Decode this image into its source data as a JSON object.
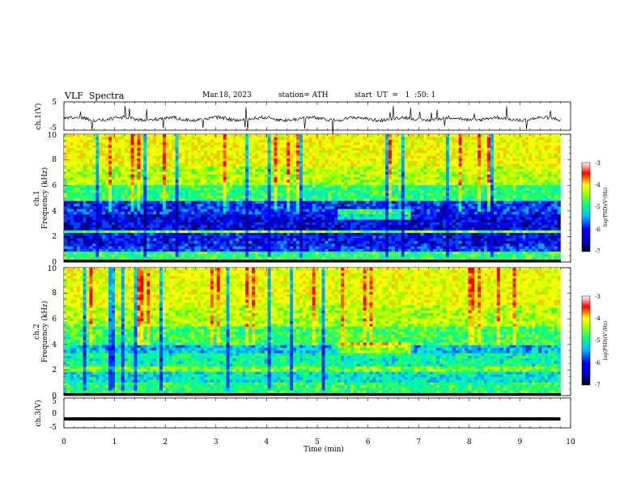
{
  "header": {
    "title": "VLF  Spectra",
    "date": "Mar.18, 2023",
    "station": "station= ATH",
    "start_ut": "start  UT  =   1  :50: 1"
  },
  "colors": {
    "scale": [
      "#000000",
      "#0000ff",
      "#00c0ff",
      "#00ff80",
      "#ffff00",
      "#ff0000",
      "#ffffff"
    ],
    "trace": "#000000"
  },
  "chart_data": [
    {
      "type": "line",
      "name": "ch1-waveform",
      "ylabel": "ch.1(V)",
      "ylim": [
        -5,
        5
      ],
      "yticks": [
        "5",
        "-5"
      ],
      "xlim": [
        0,
        10
      ],
      "note_values": "noisy trace around -1 V with sporadic spikes"
    },
    {
      "type": "heatmap",
      "name": "ch1-spectrogram",
      "ylabel_ch": "ch.1",
      "ylabel": "Frequency  (kHz)",
      "ylim": [
        0,
        10
      ],
      "yticks": [
        "0",
        "2",
        "4",
        "6",
        "8",
        "10"
      ],
      "xlim": [
        0,
        10
      ],
      "data_end_min": 9.8,
      "colorbar": {
        "label": "log(PSD)(V²/Hz)",
        "range": [
          -7,
          -3
        ],
        "ticks": [
          "-3",
          "-4",
          "-5",
          "-6",
          "-7"
        ]
      }
    },
    {
      "type": "heatmap",
      "name": "ch2-spectrogram",
      "ylabel_ch": "ch.2",
      "ylabel": "Frequency  (kHz)",
      "ylim": [
        0,
        10
      ],
      "yticks": [
        "0",
        "2",
        "4",
        "6",
        "8",
        "10"
      ],
      "xlim": [
        0,
        10
      ],
      "data_end_min": 9.8,
      "colorbar": {
        "label": "log(PSD)(V²/Hz)",
        "range": [
          -7,
          -3
        ],
        "ticks": [
          "-3",
          "-4",
          "-5",
          "-6",
          "-7"
        ]
      }
    },
    {
      "type": "line",
      "name": "ch3-waveform",
      "ylabel": "ch.3(V)",
      "ylim": [
        -5,
        5
      ],
      "yticks": [
        "5",
        "0",
        "-5"
      ],
      "xlim": [
        0,
        10
      ],
      "xlabel": "Time  (min)",
      "xticks": [
        "0",
        "1",
        "2",
        "3",
        "4",
        "5",
        "6",
        "7",
        "8",
        "9",
        "10"
      ],
      "constant_value": -2
    }
  ]
}
